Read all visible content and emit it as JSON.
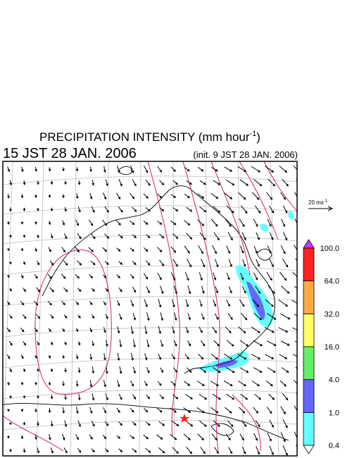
{
  "title": {
    "text": "PRECIPITATION INTENSITY (mm hour",
    "sup": "-1",
    "close": ")"
  },
  "valid_time": "15 JST 28 JAN. 2006",
  "init_time": "(init. 9 JST 28 JAN. 2006)",
  "wind_scale": {
    "text": "20 ms",
    "sup": "-1"
  },
  "colorbar": {
    "labels": [
      "0.4",
      "1.0",
      "4.0",
      "16.0",
      "32.0",
      "64.0",
      "100.0"
    ],
    "colors": [
      "#66ffff",
      "#6666ff",
      "#66ee66",
      "#ffff66",
      "#ffaa44",
      "#ff2222"
    ],
    "over_color": "#cc33ff",
    "under_color": "#ffffff"
  }
}
